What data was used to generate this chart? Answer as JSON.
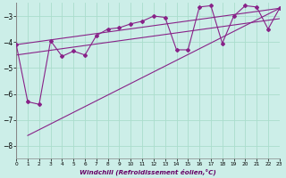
{
  "xlabel": "Windchill (Refroidissement éolien,°C)",
  "background_color": "#cceee8",
  "grid_color": "#aaddcc",
  "line_color": "#882288",
  "xlim": [
    0,
    23
  ],
  "ylim": [
    -8.5,
    -2.5
  ],
  "yticks": [
    -8,
    -7,
    -6,
    -5,
    -4,
    -3
  ],
  "xticks": [
    0,
    1,
    2,
    3,
    4,
    5,
    6,
    7,
    8,
    9,
    10,
    11,
    12,
    13,
    14,
    15,
    16,
    17,
    18,
    19,
    20,
    21,
    22,
    23
  ],
  "series1_x": [
    0,
    1,
    2,
    3,
    4,
    5,
    6,
    7,
    8,
    9,
    10,
    11,
    12,
    13,
    14,
    15,
    16,
    17,
    18,
    19,
    20,
    21,
    22,
    23
  ],
  "series1_y": [
    -4.1,
    -6.3,
    -6.4,
    -3.95,
    -4.55,
    -4.35,
    -4.5,
    -3.75,
    -3.5,
    -3.45,
    -3.3,
    -3.2,
    -3.0,
    -3.05,
    -4.3,
    -4.3,
    -2.65,
    -2.6,
    -4.05,
    -3.0,
    -2.6,
    -2.65,
    -3.5,
    -2.7
  ],
  "line1_x": [
    0,
    23
  ],
  "line1_y": [
    -4.1,
    -2.7
  ],
  "line2_x": [
    1,
    23
  ],
  "line2_y": [
    -7.6,
    -2.7
  ],
  "line3_x": [
    0,
    23
  ],
  "line3_y": [
    -4.5,
    -3.1
  ]
}
